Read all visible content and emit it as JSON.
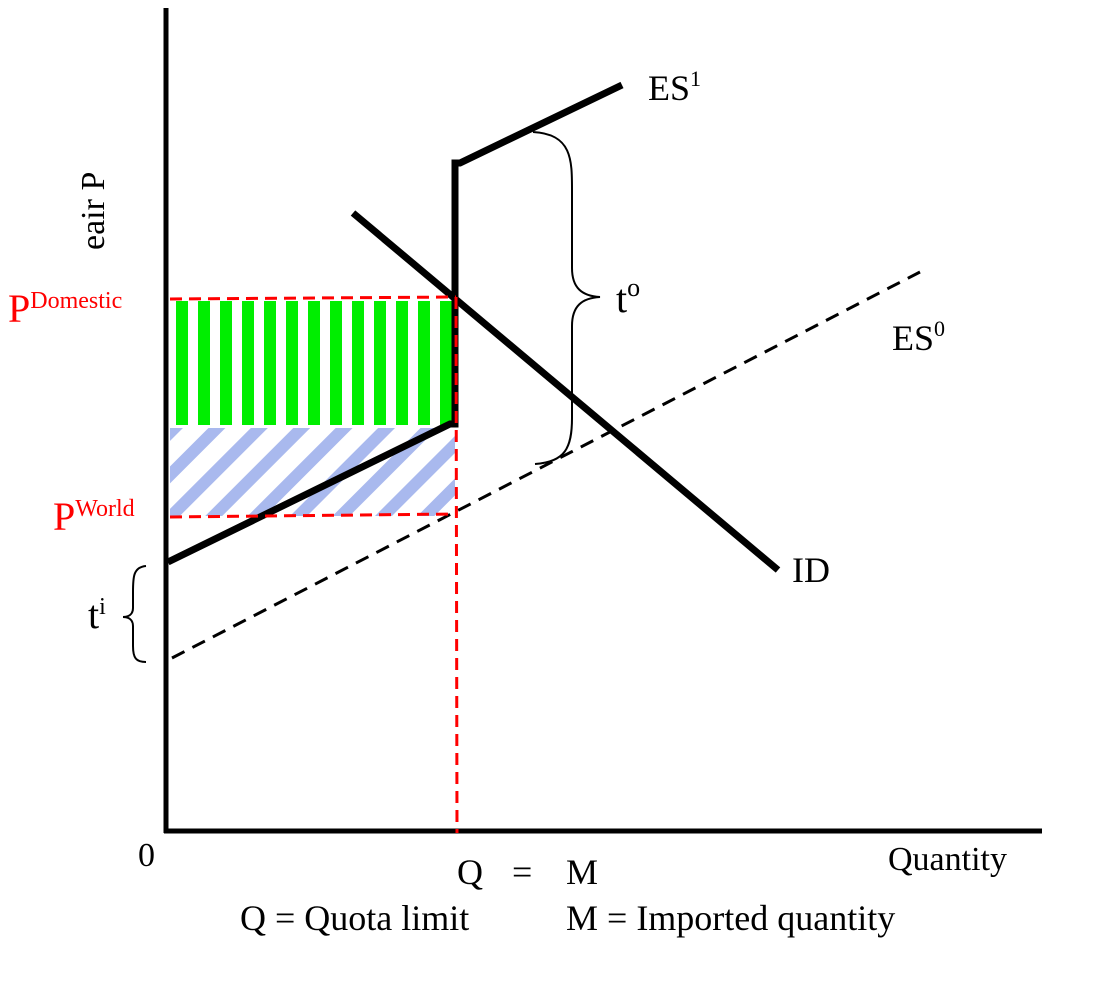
{
  "axes": {
    "y_label": "eair P",
    "x_label": "Quantity",
    "origin_label": "0"
  },
  "price_labels": {
    "domestic_base": "P",
    "domestic_sup": "Domestic",
    "world_base": "P",
    "world_sup": "World",
    "color": "#ff0000"
  },
  "curves": {
    "es1_base": "ES",
    "es1_sup": "1",
    "es0_base": "ES",
    "es0_sup": "0",
    "id_label": "ID"
  },
  "tariffs": {
    "t_out_base": "t",
    "t_out_sup": "o",
    "t_in_base": "t",
    "t_in_sup": "i"
  },
  "quota": {
    "q_label": "Q",
    "eq_label": "=",
    "m_label": "M",
    "q_legend": "Q = Quota limit",
    "m_legend": "M = Imported quantity"
  },
  "colors": {
    "domestic_rent": "#00ee00",
    "world_rent": "#a9b9ee",
    "quota_lines": "#ff0000",
    "curves": "#000000"
  }
}
